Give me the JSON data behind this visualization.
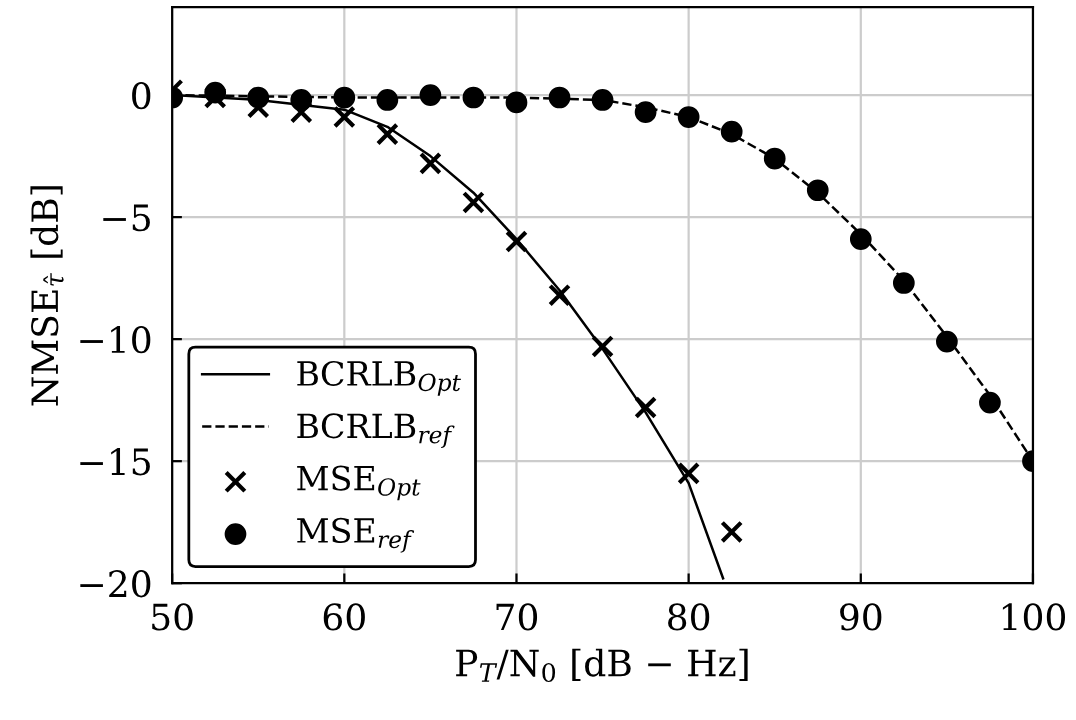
{
  "chart_data": {
    "type": "line",
    "xlabel": "P$_{T}$/N$_{0}$ [dB − Hz]",
    "ylabel": "NMSE$_{τ̂}$ [dB]",
    "xlim": [
      50,
      100
    ],
    "ylim": [
      -20,
      3.6
    ],
    "xticks": [
      50,
      60,
      70,
      80,
      90,
      100
    ],
    "yticks": [
      {
        "value": -20,
        "label": "−20"
      },
      {
        "value": -15,
        "label": "−15"
      },
      {
        "value": -10,
        "label": "−10"
      },
      {
        "value": -5,
        "label": "−5"
      },
      0
    ],
    "grid": true,
    "legend": "bottom left",
    "series": [
      {
        "name": "BCRLB$_{Opt}$",
        "line_style": "solid",
        "marker": "none",
        "color": "#000000",
        "x": [
          50,
          55,
          60,
          62.5,
          65,
          67.5,
          70,
          72.5,
          75,
          77.5,
          80,
          82
        ],
        "values": [
          0,
          -0.2,
          -0.6,
          -1.3,
          -2.5,
          -4.0,
          -5.9,
          -8.0,
          -10.4,
          -13.0,
          -15.9,
          -19.8
        ]
      },
      {
        "name": "BCRLB$_{ref}$",
        "line_style": "dashed",
        "marker": "none",
        "color": "#000000",
        "x": [
          50,
          60,
          70,
          75,
          77.5,
          80,
          82.5,
          85,
          87.5,
          90,
          92.5,
          95,
          97.5,
          100
        ],
        "values": [
          0,
          -0.1,
          -0.1,
          -0.2,
          -0.5,
          -0.9,
          -1.6,
          -2.6,
          -4.0,
          -5.7,
          -7.6,
          -9.9,
          -12.3,
          -15.0
        ]
      },
      {
        "name": "MSE$_{Opt}$",
        "type": "scatter",
        "marker": "cross",
        "color": "#000000",
        "x": [
          50,
          52.5,
          55,
          57.5,
          60,
          62.5,
          65,
          67.5,
          70,
          72.5,
          75,
          77.5,
          80,
          82.5
        ],
        "values": [
          0.2,
          -0.1,
          -0.5,
          -0.7,
          -0.9,
          -1.6,
          -2.8,
          -4.4,
          -6.0,
          -8.2,
          -10.3,
          -12.8,
          -15.5,
          -17.9
        ]
      },
      {
        "name": "MSE$_{ref}$",
        "type": "scatter",
        "marker": "circle",
        "color": "#000000",
        "x": [
          50,
          52.5,
          55,
          57.5,
          60,
          62.5,
          65,
          67.5,
          70,
          72.5,
          75,
          77.5,
          80,
          82.5,
          85,
          87.5,
          90,
          92.5,
          95,
          97.5,
          100
        ],
        "values": [
          -0.1,
          0.1,
          -0.1,
          -0.2,
          -0.1,
          -0.2,
          0,
          -0.1,
          -0.3,
          -0.1,
          -0.2,
          -0.7,
          -0.9,
          -1.5,
          -2.6,
          -3.9,
          -5.9,
          -7.7,
          -10.1,
          -12.6,
          -15.0
        ]
      }
    ]
  }
}
